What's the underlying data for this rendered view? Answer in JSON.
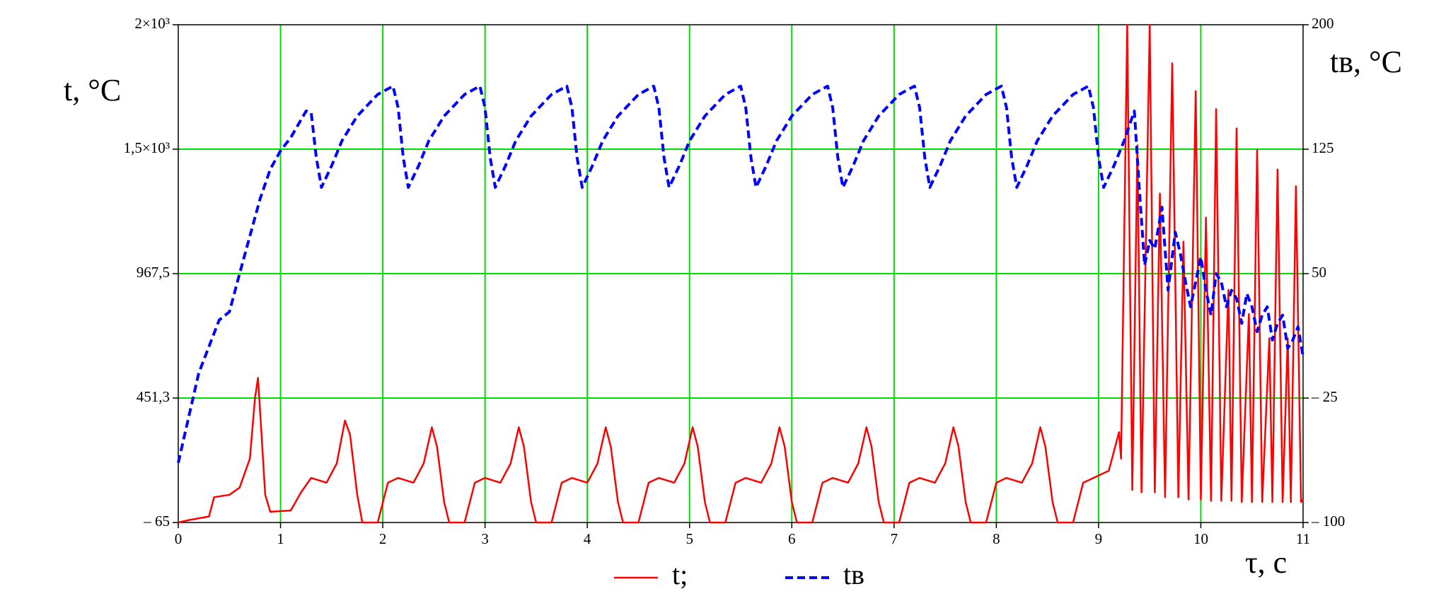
{
  "chart_data": {
    "type": "line",
    "y_label": "t, °C",
    "y2_label": "tв, °C",
    "x_label": "τ, с",
    "xlim": [
      0,
      11
    ],
    "xticks": [
      0,
      1,
      2,
      3,
      4,
      5,
      6,
      7,
      8,
      9,
      10,
      11
    ],
    "ylim": [
      -65,
      2000
    ],
    "yticks": [
      {
        "value": -65,
        "label": "– 65"
      },
      {
        "value": 451.3,
        "label": "451,3"
      },
      {
        "value": 967.5,
        "label": "967,5"
      },
      {
        "value": 1483.8,
        "label": "1,5×10³"
      },
      {
        "value": 2000,
        "label": "2×10³"
      }
    ],
    "y2lim": [
      -100,
      200
    ],
    "y2ticks": [
      {
        "value": -100,
        "label": "– 100"
      },
      {
        "value": -25,
        "label": "– 25"
      },
      50,
      125,
      200
    ],
    "grid": true,
    "grid_color": "#00dd00",
    "legend": "bottom",
    "series": [
      {
        "name": "t;",
        "color": "#ff0000",
        "dashed": false,
        "x": [
          0,
          0.1,
          0.3,
          0.35,
          0.5,
          0.6,
          0.7,
          0.75,
          0.78,
          0.8,
          0.85,
          0.9,
          1.1,
          1.2,
          1.3,
          1.45,
          1.55,
          1.63,
          1.68,
          1.75,
          1.8,
          1.95,
          2.05,
          2.15,
          2.3,
          2.4,
          2.48,
          2.53,
          2.6,
          2.65,
          2.8,
          2.9,
          3.0,
          3.15,
          3.25,
          3.33,
          3.38,
          3.45,
          3.5,
          3.65,
          3.75,
          3.85,
          4.0,
          4.1,
          4.18,
          4.23,
          4.3,
          4.35,
          4.5,
          4.6,
          4.7,
          4.85,
          4.95,
          5.03,
          5.08,
          5.15,
          5.2,
          5.35,
          5.45,
          5.55,
          5.7,
          5.8,
          5.88,
          5.93,
          6.0,
          6.05,
          6.2,
          6.3,
          6.4,
          6.55,
          6.65,
          6.73,
          6.78,
          6.85,
          6.9,
          7.05,
          7.15,
          7.25,
          7.4,
          7.5,
          7.58,
          7.63,
          7.7,
          7.75,
          7.9,
          8.0,
          8.1,
          8.25,
          8.35,
          8.43,
          8.48,
          8.55,
          8.6,
          8.75,
          8.85,
          8.95,
          9.1,
          9.2,
          9.22,
          9.28,
          9.33,
          9.38,
          9.42,
          9.5,
          9.55,
          9.6,
          9.65,
          9.72,
          9.78,
          9.83,
          9.88,
          9.95,
          10.0,
          10.05,
          10.1,
          10.15,
          10.2,
          10.27,
          10.3,
          10.35,
          10.4,
          10.47,
          10.5,
          10.55,
          10.6,
          10.67,
          10.7,
          10.75,
          10.8,
          10.85,
          10.88,
          10.93,
          10.98,
          11
        ],
        "values": [
          -65,
          -55,
          -40,
          40,
          50,
          80,
          200,
          450,
          535,
          400,
          50,
          -20,
          -15,
          60,
          120,
          100,
          180,
          358,
          300,
          50,
          -65,
          -65,
          100,
          120,
          100,
          180,
          330,
          250,
          20,
          -65,
          -65,
          100,
          120,
          100,
          180,
          330,
          250,
          20,
          -65,
          -65,
          100,
          120,
          100,
          180,
          330,
          250,
          20,
          -65,
          -65,
          100,
          120,
          100,
          180,
          330,
          250,
          20,
          -65,
          -65,
          100,
          120,
          100,
          180,
          330,
          250,
          20,
          -65,
          -65,
          100,
          120,
          100,
          180,
          330,
          250,
          20,
          -65,
          -65,
          100,
          120,
          100,
          180,
          330,
          250,
          20,
          -65,
          -65,
          100,
          120,
          100,
          180,
          330,
          250,
          20,
          -65,
          -65,
          100,
          120,
          150,
          310,
          200,
          2000,
          70,
          1500,
          60,
          2000,
          60,
          1300,
          40,
          1840,
          40,
          1100,
          30,
          1725,
          30,
          1200,
          25,
          1650,
          25,
          900,
          25,
          1570,
          20,
          800,
          20,
          1480,
          20,
          700,
          20,
          1400,
          20,
          700,
          20,
          1330,
          20,
          30
        ]
      },
      {
        "name": "tв",
        "color": "#0000ff",
        "dashed": true,
        "axis": "y2",
        "x": [
          0,
          0.2,
          0.4,
          0.5,
          0.6,
          0.8,
          0.9,
          1.0,
          1.1,
          1.25,
          1.3,
          1.35,
          1.4,
          1.5,
          1.6,
          1.75,
          1.95,
          2.1,
          2.15,
          2.2,
          2.25,
          2.35,
          2.45,
          2.6,
          2.8,
          2.95,
          3.0,
          3.05,
          3.1,
          3.2,
          3.3,
          3.45,
          3.65,
          3.8,
          3.85,
          3.9,
          3.95,
          4.05,
          4.15,
          4.3,
          4.5,
          4.65,
          4.7,
          4.75,
          4.8,
          4.9,
          5.0,
          5.15,
          5.35,
          5.5,
          5.55,
          5.6,
          5.65,
          5.75,
          5.85,
          6.0,
          6.2,
          6.35,
          6.4,
          6.45,
          6.5,
          6.6,
          6.7,
          6.85,
          7.05,
          7.2,
          7.25,
          7.3,
          7.35,
          7.45,
          7.55,
          7.7,
          7.9,
          8.05,
          8.1,
          8.15,
          8.2,
          8.3,
          8.4,
          8.55,
          8.75,
          8.9,
          8.95,
          9.0,
          9.05,
          9.15,
          9.25,
          9.35,
          9.4,
          9.45,
          9.5,
          9.55,
          9.62,
          9.68,
          9.75,
          9.8,
          9.85,
          9.9,
          9.95,
          10.0,
          10.05,
          10.1,
          10.15,
          10.2,
          10.25,
          10.3,
          10.35,
          10.4,
          10.45,
          10.5,
          10.55,
          10.6,
          10.65,
          10.7,
          10.75,
          10.8,
          10.85,
          10.9,
          10.95,
          11.0
        ],
        "values": [
          -64,
          -10,
          22,
          27,
          50,
          95,
          113,
          124,
          132,
          148,
          147,
          120,
          102,
          115,
          130,
          145,
          158,
          163,
          150,
          120,
          102,
          115,
          130,
          145,
          158,
          163,
          150,
          120,
          102,
          115,
          130,
          145,
          158,
          163,
          150,
          120,
          102,
          115,
          130,
          145,
          158,
          163,
          150,
          120,
          102,
          115,
          130,
          145,
          158,
          163,
          150,
          120,
          102,
          115,
          130,
          145,
          158,
          163,
          150,
          120,
          102,
          115,
          130,
          145,
          158,
          163,
          150,
          120,
          102,
          115,
          130,
          145,
          158,
          163,
          150,
          120,
          102,
          115,
          130,
          145,
          158,
          163,
          150,
          120,
          102,
          115,
          130,
          148,
          100,
          55,
          70,
          65,
          90,
          40,
          75,
          62,
          45,
          30,
          45,
          60,
          40,
          25,
          50,
          45,
          30,
          40,
          35,
          20,
          38,
          30,
          15,
          25,
          30,
          10,
          20,
          25,
          5,
          10,
          18,
          0
        ]
      }
    ]
  }
}
